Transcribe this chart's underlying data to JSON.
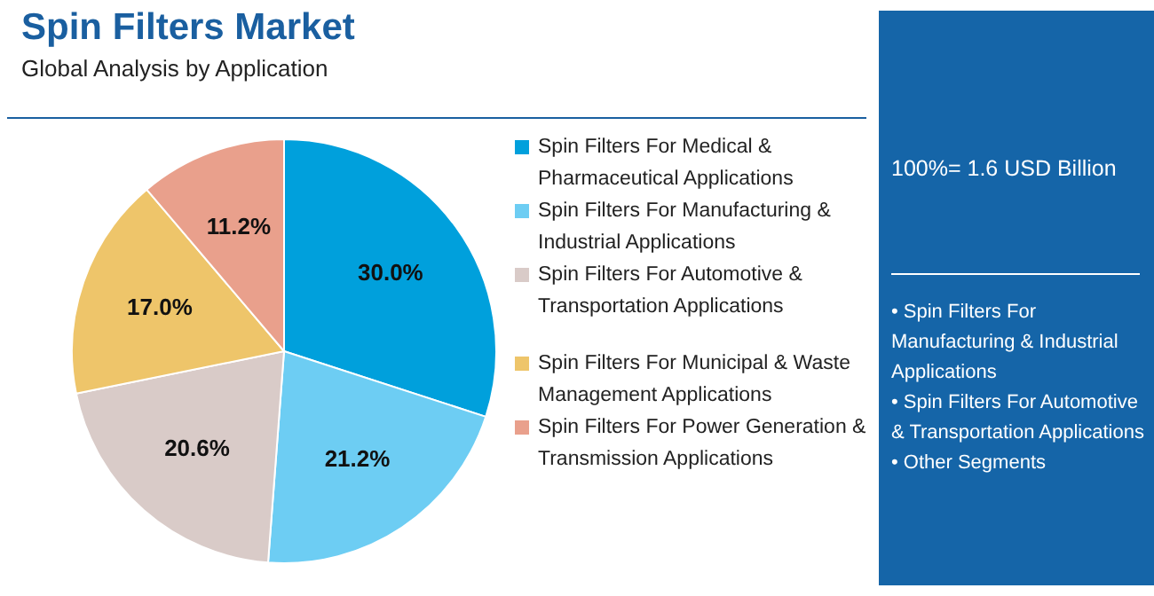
{
  "chart_data": {
    "type": "pie",
    "title": "Spin Filters Market",
    "subtitle": "Global Analysis by Application",
    "categories": [
      "Spin Filters For Medical & Pharmaceutical Applications",
      "Spin Filters For Manufacturing & Industrial Applications",
      "Spin Filters For Automotive & Transportation Applications",
      "Spin Filters For Municipal & Waste Management Applications",
      "Spin Filters For Power Generation & Transmission Applications"
    ],
    "values": [
      30.0,
      21.2,
      20.6,
      17.0,
      11.2
    ],
    "value_labels": [
      "30.0%",
      "21.2%",
      "20.6%",
      "17.0%",
      "11.2%"
    ],
    "colors": [
      "#00a0dc",
      "#6dcdf3",
      "#d9cbc8",
      "#eec56a",
      "#e9a08c"
    ],
    "legend": "right",
    "annotations": [
      "100%= 1.6 USD Billion",
      "• Spin Filters For Manufacturing & Industrial Applications",
      "• Spin Filters For Automotive & Transportation Applications",
      "• Other Segments"
    ]
  }
}
